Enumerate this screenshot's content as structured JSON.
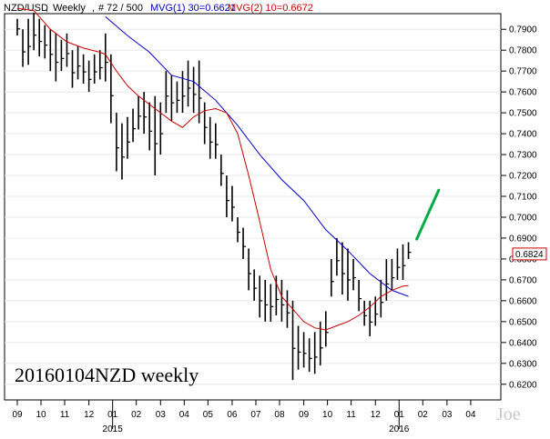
{
  "header": {
    "symbol": "NZD/USD",
    "period_label": "Weekly",
    "bar_count": "# 72 / 500",
    "ma1_label": "MVG(1) 30=0.6621",
    "ma2_label": "MVG(2) 10=0.6672",
    "ma1_color": "#0000cc",
    "ma2_color": "#cc0000"
  },
  "annotation": "20160104NZD weekly",
  "watermark": "Joe",
  "chart_data": {
    "type": "ohlc",
    "title": "",
    "xlabel": "",
    "ylabel": "",
    "ylim": [
      0.6125,
      0.7975
    ],
    "y_ticks": [
      "0.6200",
      "0.6300",
      "0.6400",
      "0.6500",
      "0.6600",
      "0.6700",
      "0.6800",
      "0.6900",
      "0.7000",
      "0.7100",
      "0.7200",
      "0.7300",
      "0.7400",
      "0.7500",
      "0.7600",
      "0.7700",
      "0.7800",
      "0.7900"
    ],
    "last_price_label": "0.6824",
    "last_price": 0.6824,
    "month_ticks": [
      {
        "label": "09",
        "week": 0
      },
      {
        "label": "10",
        "week": 4.3
      },
      {
        "label": "11",
        "week": 8.6
      },
      {
        "label": "12",
        "week": 13
      },
      {
        "label": "01",
        "week": 17.3
      },
      {
        "label": "02",
        "week": 21.6
      },
      {
        "label": "03",
        "week": 26
      },
      {
        "label": "04",
        "week": 30.3
      },
      {
        "label": "05",
        "week": 34.6
      },
      {
        "label": "06",
        "week": 39
      },
      {
        "label": "07",
        "week": 43.3
      },
      {
        "label": "08",
        "week": 47.6
      },
      {
        "label": "09",
        "week": 52
      },
      {
        "label": "10",
        "week": 56.3
      },
      {
        "label": "11",
        "week": 60.6
      },
      {
        "label": "12",
        "week": 65
      },
      {
        "label": "01",
        "week": 69.3
      },
      {
        "label": "02",
        "week": 73.6
      },
      {
        "label": "03",
        "week": 78
      },
      {
        "label": "04",
        "week": 82.3
      }
    ],
    "year_labels": [
      {
        "label": "2015",
        "week": 17.3
      },
      {
        "label": "2016",
        "week": 69.3
      }
    ],
    "bars": [
      [
        0.795,
        0.787
      ],
      [
        0.79,
        0.772
      ],
      [
        0.795,
        0.773
      ],
      [
        0.798,
        0.78
      ],
      [
        0.795,
        0.777
      ],
      [
        0.792,
        0.776
      ],
      [
        0.79,
        0.77
      ],
      [
        0.788,
        0.765
      ],
      [
        0.785,
        0.77
      ],
      [
        0.788,
        0.772
      ],
      [
        0.78,
        0.762
      ],
      [
        0.782,
        0.766
      ],
      [
        0.778,
        0.764
      ],
      [
        0.775,
        0.76
      ],
      [
        0.778,
        0.764
      ],
      [
        0.78,
        0.766
      ],
      [
        0.788,
        0.765
      ],
      [
        0.778,
        0.745
      ],
      [
        0.75,
        0.722
      ],
      [
        0.745,
        0.718
      ],
      [
        0.748,
        0.728
      ],
      [
        0.752,
        0.736
      ],
      [
        0.758,
        0.742
      ],
      [
        0.76,
        0.74
      ],
      [
        0.755,
        0.732
      ],
      [
        0.758,
        0.72
      ],
      [
        0.755,
        0.73
      ],
      [
        0.77,
        0.75
      ],
      [
        0.768,
        0.746
      ],
      [
        0.765,
        0.75
      ],
      [
        0.77,
        0.75
      ],
      [
        0.775,
        0.753
      ],
      [
        0.772,
        0.75
      ],
      [
        0.775,
        0.745
      ],
      [
        0.755,
        0.735
      ],
      [
        0.748,
        0.728
      ],
      [
        0.745,
        0.728
      ],
      [
        0.73,
        0.715
      ],
      [
        0.72,
        0.7
      ],
      [
        0.715,
        0.698
      ],
      [
        0.7,
        0.688
      ],
      [
        0.695,
        0.68
      ],
      [
        0.685,
        0.665
      ],
      [
        0.675,
        0.66
      ],
      [
        0.672,
        0.652
      ],
      [
        0.67,
        0.65
      ],
      [
        0.668,
        0.65
      ],
      [
        0.672,
        0.653
      ],
      [
        0.67,
        0.65
      ],
      [
        0.665,
        0.647
      ],
      [
        0.66,
        0.622
      ],
      [
        0.648,
        0.627
      ],
      [
        0.645,
        0.628
      ],
      [
        0.642,
        0.626
      ],
      [
        0.645,
        0.625
      ],
      [
        0.65,
        0.629
      ],
      [
        0.655,
        0.638
      ],
      [
        0.68,
        0.662
      ],
      [
        0.69,
        0.672
      ],
      [
        0.688,
        0.663
      ],
      [
        0.685,
        0.66
      ],
      [
        0.68,
        0.665
      ],
      [
        0.67,
        0.655
      ],
      [
        0.66,
        0.648
      ],
      [
        0.66,
        0.643
      ],
      [
        0.662,
        0.648
      ],
      [
        0.67,
        0.652
      ],
      [
        0.68,
        0.66
      ],
      [
        0.68,
        0.665
      ],
      [
        0.685,
        0.67
      ],
      [
        0.687,
        0.67
      ],
      [
        0.688,
        0.68
      ]
    ],
    "series": [
      {
        "name": "MVG(1) 30",
        "color": "#0000cc",
        "x": [
          16,
          20,
          24,
          28,
          32,
          36,
          40,
          44,
          48,
          52,
          56,
          60,
          64,
          68,
          71
        ],
        "values": [
          0.796,
          0.787,
          0.779,
          0.768,
          0.765,
          0.756,
          0.744,
          0.73,
          0.718,
          0.708,
          0.694,
          0.684,
          0.673,
          0.665,
          0.6621
        ]
      },
      {
        "name": "MVG(2) 10",
        "color": "#cc0000",
        "x": [
          0,
          3,
          6,
          9,
          12,
          15,
          16,
          18,
          20,
          22,
          24,
          26,
          28,
          30,
          32,
          34,
          36,
          38,
          40,
          42,
          44,
          46,
          48,
          50,
          52,
          54,
          56,
          58,
          60,
          62,
          64,
          66,
          68,
          70,
          71
        ],
        "values": [
          0.8,
          0.799,
          0.79,
          0.784,
          0.781,
          0.779,
          0.778,
          0.77,
          0.763,
          0.758,
          0.754,
          0.75,
          0.746,
          0.743,
          0.748,
          0.751,
          0.752,
          0.75,
          0.74,
          0.72,
          0.698,
          0.675,
          0.662,
          0.656,
          0.65,
          0.647,
          0.646,
          0.648,
          0.65,
          0.653,
          0.657,
          0.662,
          0.665,
          0.667,
          0.6672
        ]
      }
    ],
    "projection": {
      "color": "#00aa44",
      "from": {
        "week": 72.5,
        "value": 0.6895
      },
      "to": {
        "week": 76.5,
        "value": 0.713
      }
    }
  }
}
